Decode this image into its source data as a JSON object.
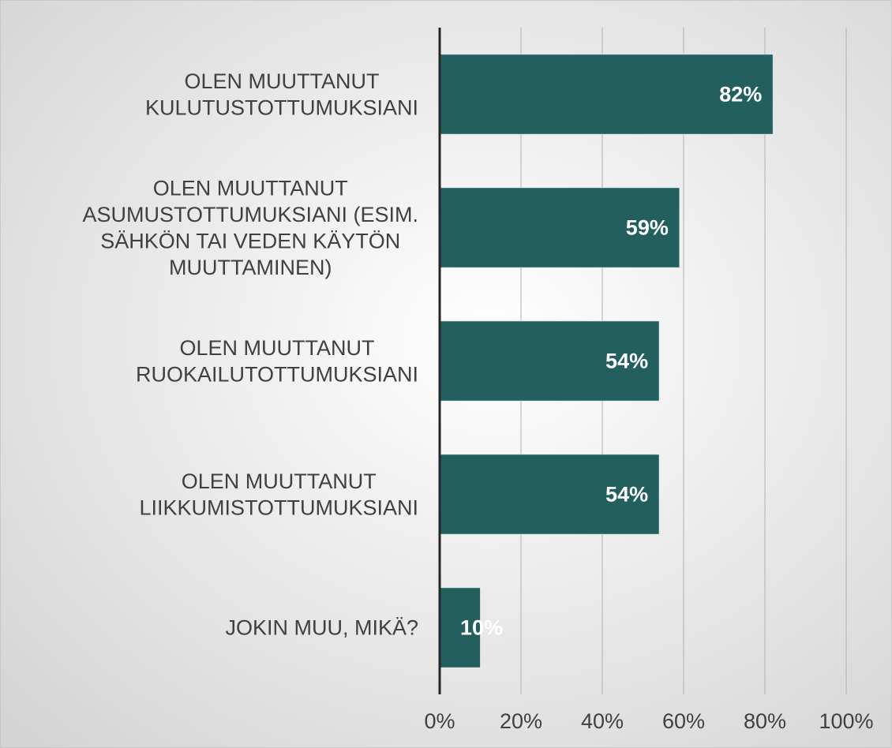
{
  "chart_data": {
    "type": "bar",
    "orientation": "horizontal",
    "categories": [
      "OLEN MUUTTANUT\nKULUTUSTOTTUMUKSIANI",
      "OLEN MUUTTANUT\nASUMUSTOTTUMUKSIANI (ESIM.\nSÄHKÖN TAI VEDEN KÄYTÖN\nMUUTTAMINEN)",
      "OLEN MUUTTANUT\nRUOKAILUTOTTUMUKSIANI",
      "OLEN MUUTTANUT\nLIIKKUMISTOTTUMUKSIANI",
      "JOKIN MUU, MIKÄ?"
    ],
    "values": [
      82,
      59,
      54,
      54,
      10
    ],
    "value_labels": [
      "82%",
      "59%",
      "54%",
      "54%",
      "10%"
    ],
    "color": "#245f60",
    "xlim": [
      0,
      100
    ],
    "xticks": [
      {
        "value": 0,
        "label": "0%"
      },
      {
        "value": 20,
        "label": "20%"
      },
      {
        "value": 40,
        "label": "40%"
      },
      {
        "value": 60,
        "label": "60%"
      },
      {
        "value": 80,
        "label": "80%"
      },
      {
        "value": 100,
        "label": "100%"
      }
    ],
    "grid": true
  }
}
